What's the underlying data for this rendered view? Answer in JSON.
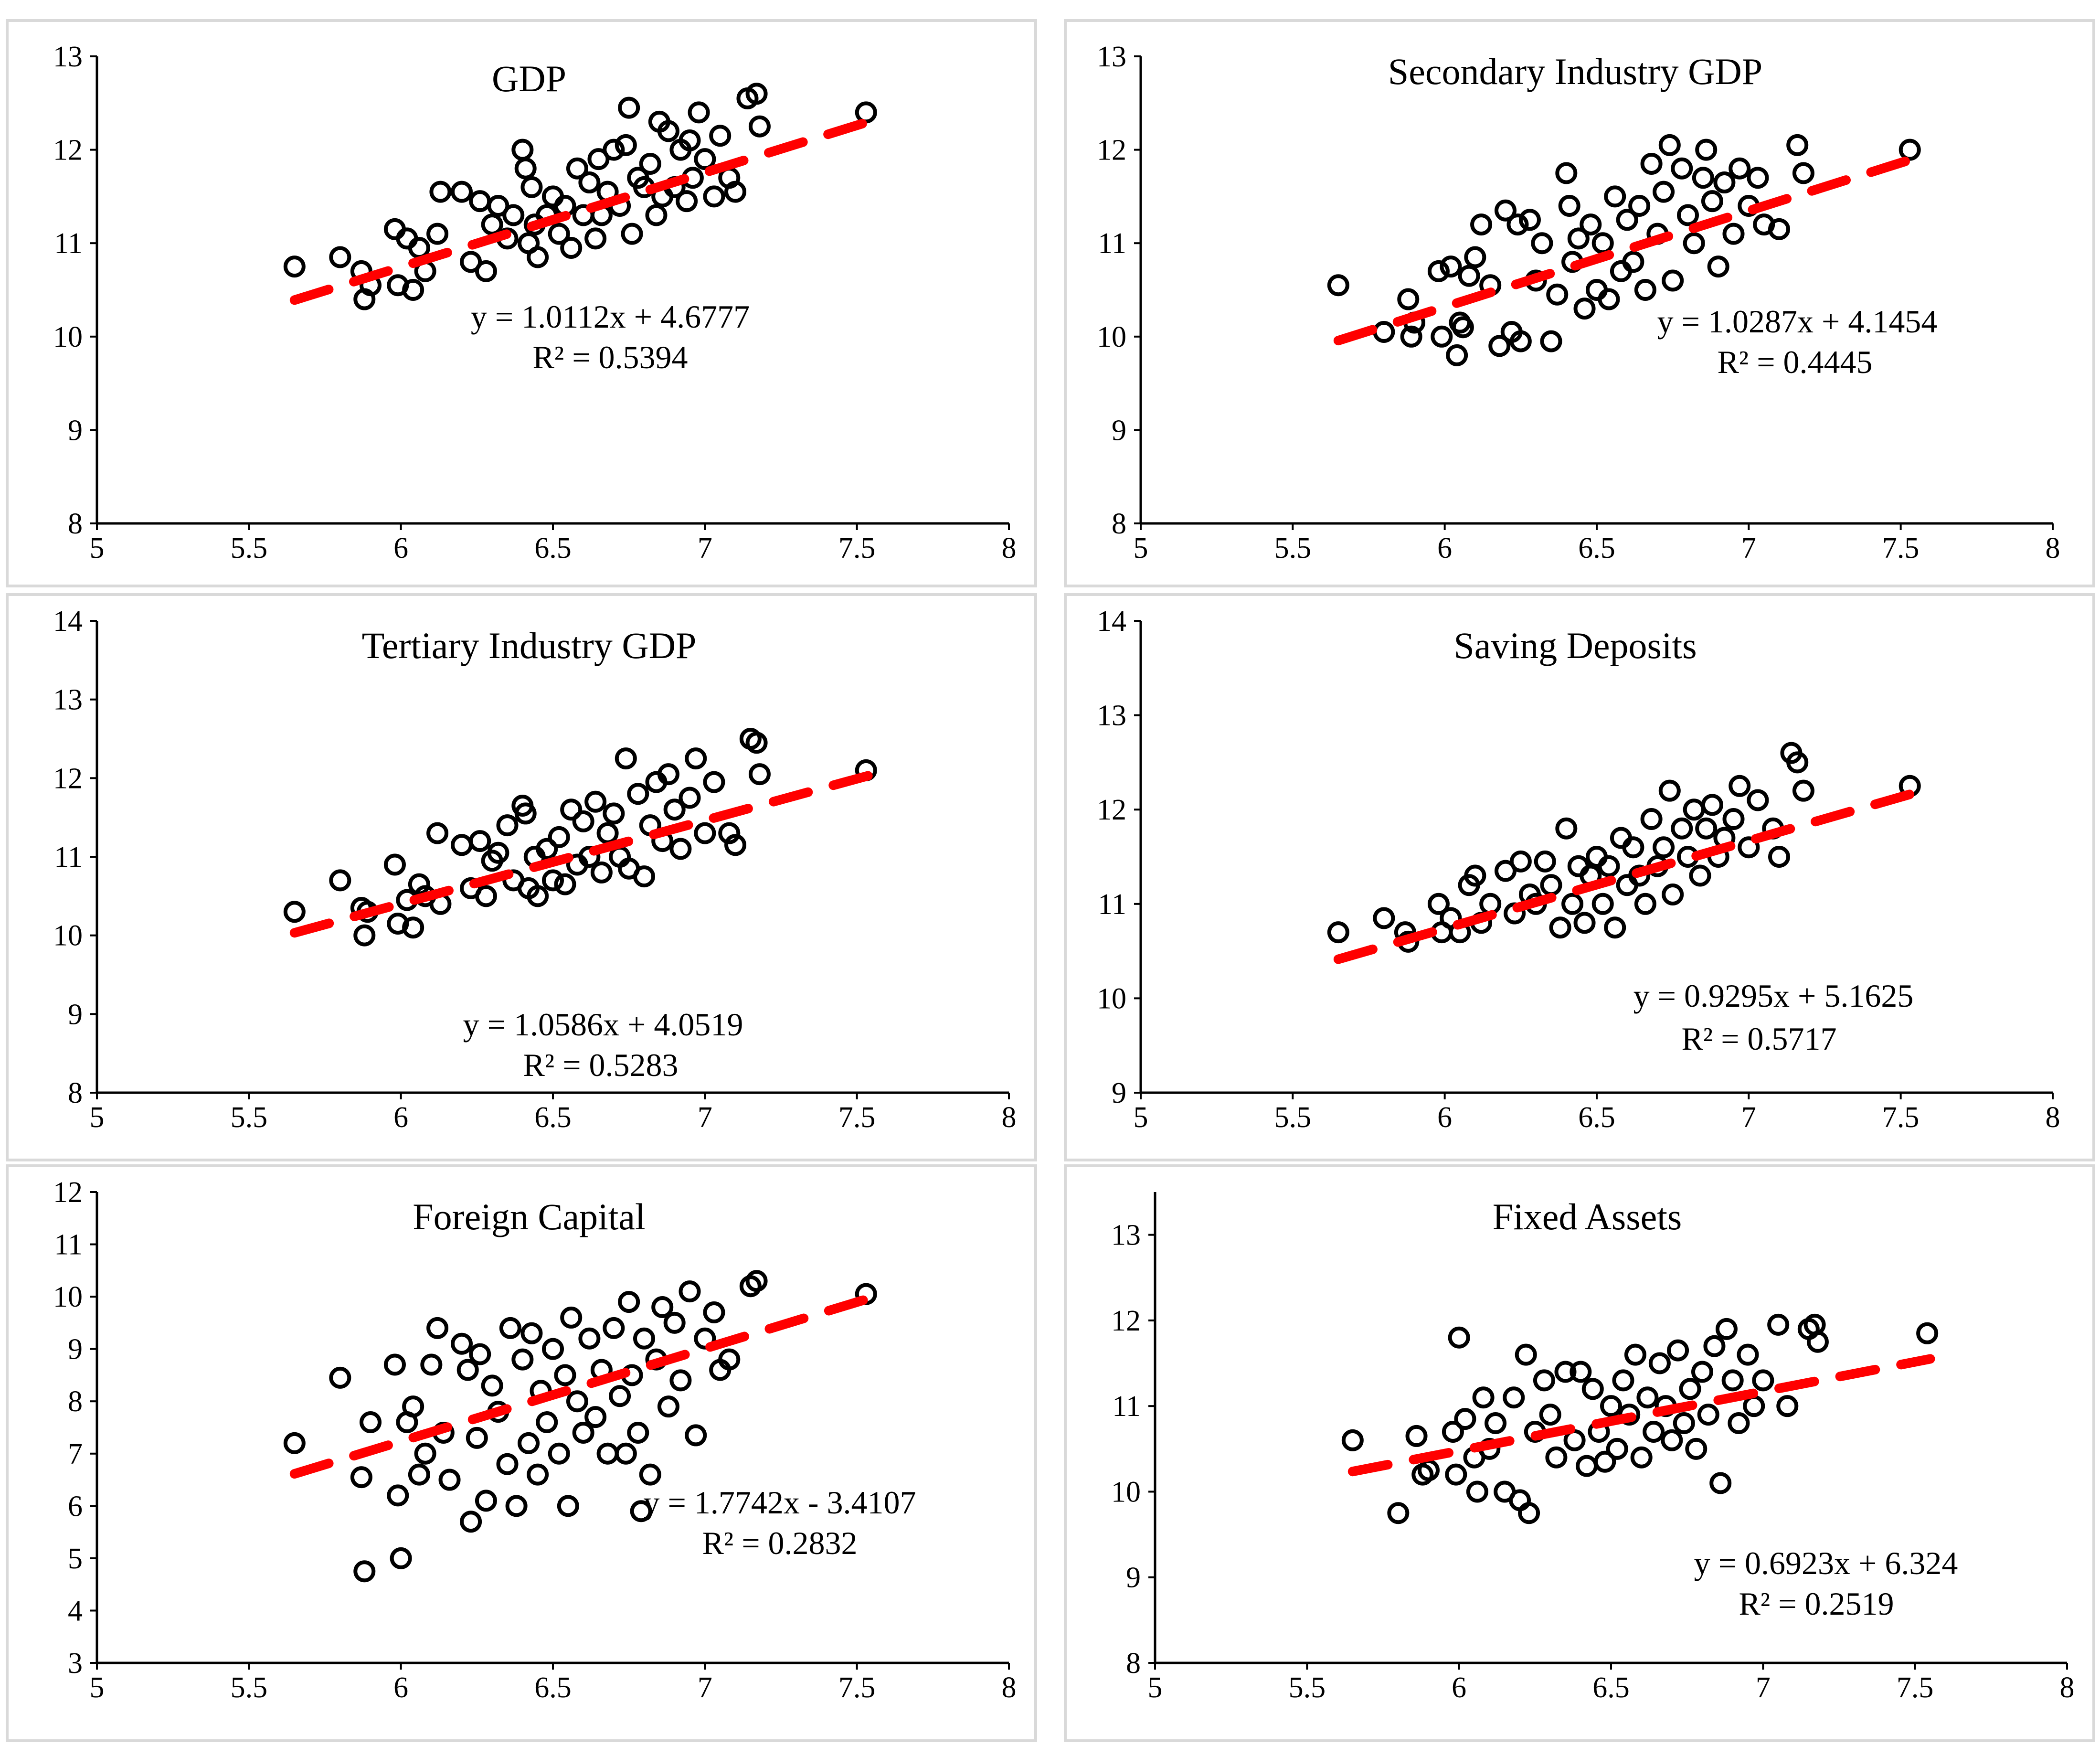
{
  "colors": {
    "point": "#000000",
    "trendline": "#ff0000",
    "axis": "#000000",
    "panel_border": "#d9d9d9"
  },
  "chart_data": [
    {
      "type": "scatter",
      "title": "GDP",
      "xlim": [
        5,
        8
      ],
      "ylim": [
        8,
        13
      ],
      "xticks": [
        "5",
        "5.5",
        "6",
        "6.5",
        "7",
        "7.5",
        "8"
      ],
      "yticks": [
        "8",
        "9",
        "10",
        "11",
        "12",
        "13"
      ],
      "trendline": {
        "slope": 1.0112,
        "intercept": 4.6777,
        "x_range": [
          5.65,
          7.55
        ]
      },
      "equation": "y = 1.0112x + 4.6777",
      "r2": "R² = 0.5394",
      "x": [
        5.65,
        5.8,
        5.87,
        5.88,
        5.9,
        5.98,
        5.99,
        6.02,
        6.04,
        6.06,
        6.08,
        6.12,
        6.13,
        6.2,
        6.23,
        6.26,
        6.28,
        6.3,
        6.32,
        6.35,
        6.37,
        6.4,
        6.41,
        6.42,
        6.43,
        6.44,
        6.45,
        6.48,
        6.5,
        6.52,
        6.54,
        6.56,
        6.58,
        6.6,
        6.62,
        6.64,
        6.65,
        6.66,
        6.68,
        6.7,
        6.72,
        6.74,
        6.75,
        6.76,
        6.78,
        6.8,
        6.82,
        6.84,
        6.85,
        6.86,
        6.88,
        6.9,
        6.92,
        6.94,
        6.95,
        6.96,
        6.98,
        7.0,
        7.03,
        7.05,
        7.08,
        7.1,
        7.14,
        7.17,
        7.18,
        7.53
      ],
      "y": [
        10.75,
        10.85,
        10.7,
        10.4,
        10.55,
        11.15,
        10.55,
        11.05,
        10.5,
        10.95,
        10.7,
        11.1,
        11.55,
        11.55,
        10.8,
        11.45,
        10.7,
        11.2,
        11.4,
        11.05,
        11.3,
        12.0,
        11.8,
        11.0,
        11.6,
        11.2,
        10.85,
        11.3,
        11.5,
        11.1,
        11.4,
        10.95,
        11.8,
        11.3,
        11.65,
        11.05,
        11.9,
        11.3,
        11.55,
        12.0,
        11.4,
        12.05,
        12.45,
        11.1,
        11.7,
        11.6,
        11.85,
        11.3,
        12.3,
        11.5,
        12.2,
        11.6,
        12.0,
        11.45,
        12.1,
        11.7,
        12.4,
        11.9,
        11.5,
        12.15,
        11.7,
        11.55,
        12.55,
        12.6,
        12.25,
        12.4
      ]
    },
    {
      "type": "scatter",
      "title": "Secondary Industry GDP",
      "xlim": [
        5,
        8
      ],
      "ylim": [
        8,
        13
      ],
      "xticks": [
        "5",
        "5.5",
        "6",
        "6.5",
        "7",
        "7.5",
        "8"
      ],
      "yticks": [
        "8",
        "9",
        "10",
        "11",
        "12",
        "13"
      ],
      "trendline": {
        "slope": 1.0287,
        "intercept": 4.1454,
        "x_range": [
          5.65,
          7.55
        ]
      },
      "equation": "y = 1.0287x + 4.1454",
      "r2": "R² = 0.4445",
      "x": [
        5.65,
        5.8,
        5.88,
        5.89,
        5.9,
        5.98,
        5.99,
        6.02,
        6.04,
        6.05,
        6.06,
        6.08,
        6.1,
        6.12,
        6.15,
        6.18,
        6.2,
        6.22,
        6.24,
        6.25,
        6.28,
        6.3,
        6.32,
        6.35,
        6.37,
        6.4,
        6.41,
        6.42,
        6.44,
        6.46,
        6.48,
        6.5,
        6.52,
        6.54,
        6.56,
        6.58,
        6.6,
        6.62,
        6.64,
        6.66,
        6.68,
        6.7,
        6.72,
        6.74,
        6.75,
        6.78,
        6.8,
        6.82,
        6.85,
        6.86,
        6.88,
        6.9,
        6.92,
        6.95,
        6.97,
        7.0,
        7.03,
        7.05,
        7.1,
        7.16,
        7.18,
        7.53
      ],
      "y": [
        10.55,
        10.05,
        10.4,
        10.0,
        10.15,
        10.7,
        10.0,
        10.75,
        9.8,
        10.15,
        10.1,
        10.65,
        10.85,
        11.2,
        10.55,
        9.9,
        11.35,
        10.05,
        11.2,
        9.95,
        11.25,
        10.6,
        11.0,
        9.95,
        10.45,
        11.75,
        11.4,
        10.8,
        11.05,
        10.3,
        11.2,
        10.5,
        11.0,
        10.4,
        11.5,
        10.7,
        11.25,
        10.8,
        11.4,
        10.5,
        11.85,
        11.1,
        11.55,
        12.05,
        10.6,
        11.8,
        11.3,
        11.0,
        11.7,
        12.0,
        11.45,
        10.75,
        11.65,
        11.1,
        11.8,
        11.4,
        11.7,
        11.2,
        11.15,
        12.05,
        11.75,
        12.0
      ]
    },
    {
      "type": "scatter",
      "title": "Tertiary Industry GDP",
      "xlim": [
        5,
        8
      ],
      "ylim": [
        8,
        14
      ],
      "xticks": [
        "5",
        "5.5",
        "6",
        "6.5",
        "7",
        "7.5",
        "8"
      ],
      "yticks": [
        "8",
        "9",
        "10",
        "11",
        "12",
        "13",
        "14"
      ],
      "trendline": {
        "slope": 1.0586,
        "intercept": 4.0519,
        "x_range": [
          5.65,
          7.55
        ]
      },
      "equation": "y = 1.0586x + 4.0519",
      "r2": "R² = 0.5283",
      "x": [
        5.65,
        5.8,
        5.87,
        5.88,
        5.89,
        5.98,
        5.99,
        6.02,
        6.04,
        6.06,
        6.08,
        6.12,
        6.13,
        6.2,
        6.23,
        6.26,
        6.28,
        6.3,
        6.32,
        6.35,
        6.37,
        6.4,
        6.41,
        6.42,
        6.44,
        6.45,
        6.48,
        6.5,
        6.52,
        6.54,
        6.56,
        6.58,
        6.6,
        6.62,
        6.64,
        6.66,
        6.68,
        6.7,
        6.72,
        6.74,
        6.75,
        6.78,
        6.8,
        6.82,
        6.84,
        6.86,
        6.88,
        6.9,
        6.92,
        6.95,
        6.97,
        7.0,
        7.03,
        7.08,
        7.1,
        7.15,
        7.17,
        7.18,
        7.53
      ],
      "y": [
        10.3,
        10.7,
        10.35,
        10.0,
        10.3,
        10.9,
        10.15,
        10.45,
        10.1,
        10.65,
        10.5,
        11.3,
        10.4,
        11.15,
        10.6,
        11.2,
        10.5,
        10.95,
        11.05,
        11.4,
        10.7,
        11.65,
        11.55,
        10.6,
        11.0,
        10.5,
        11.1,
        10.7,
        11.25,
        10.65,
        11.6,
        10.9,
        11.45,
        11.0,
        11.7,
        10.8,
        11.3,
        11.55,
        11.0,
        12.25,
        10.85,
        11.8,
        10.75,
        11.4,
        11.95,
        11.2,
        12.05,
        11.6,
        11.1,
        11.75,
        12.25,
        11.3,
        11.95,
        11.3,
        11.15,
        12.5,
        12.45,
        12.05,
        12.1
      ]
    },
    {
      "type": "scatter",
      "title": "Saving Deposits",
      "xlim": [
        5,
        8
      ],
      "ylim": [
        9,
        14
      ],
      "xticks": [
        "5",
        "5.5",
        "6",
        "6.5",
        "7",
        "7.5",
        "8"
      ],
      "yticks": [
        "9",
        "10",
        "11",
        "12",
        "13",
        "14"
      ],
      "trendline": {
        "slope": 0.9295,
        "intercept": 5.1625,
        "x_range": [
          5.65,
          7.55
        ]
      },
      "equation": "y = 0.9295x + 5.1625",
      "r2": "R² = 0.5717",
      "x": [
        5.65,
        5.8,
        5.87,
        5.88,
        5.98,
        5.99,
        6.02,
        6.05,
        6.08,
        6.1,
        6.12,
        6.15,
        6.2,
        6.23,
        6.25,
        6.28,
        6.3,
        6.33,
        6.35,
        6.38,
        6.4,
        6.42,
        6.44,
        6.46,
        6.48,
        6.5,
        6.52,
        6.54,
        6.56,
        6.58,
        6.6,
        6.62,
        6.64,
        6.66,
        6.68,
        6.7,
        6.72,
        6.74,
        6.75,
        6.78,
        6.8,
        6.82,
        6.84,
        6.86,
        6.88,
        6.9,
        6.92,
        6.95,
        6.97,
        7.0,
        7.03,
        7.08,
        7.1,
        7.14,
        7.16,
        7.18,
        7.53
      ],
      "y": [
        10.7,
        10.85,
        10.7,
        10.6,
        11.0,
        10.7,
        10.85,
        10.7,
        11.2,
        11.3,
        10.8,
        11.0,
        11.35,
        10.9,
        11.45,
        11.1,
        11.0,
        11.45,
        11.2,
        10.75,
        11.8,
        11.0,
        11.4,
        10.8,
        11.3,
        11.5,
        11.0,
        11.4,
        10.75,
        11.7,
        11.2,
        11.6,
        11.3,
        11.0,
        11.9,
        11.4,
        11.6,
        12.2,
        11.1,
        11.8,
        11.5,
        12.0,
        11.3,
        11.8,
        12.05,
        11.5,
        11.7,
        11.9,
        12.25,
        11.6,
        12.1,
        11.8,
        11.5,
        12.6,
        12.5,
        12.2,
        12.25
      ]
    },
    {
      "type": "scatter",
      "title": "Foreign Capital",
      "xlim": [
        5,
        8
      ],
      "ylim": [
        3,
        12
      ],
      "xticks": [
        "5",
        "5.5",
        "6",
        "6.5",
        "7",
        "7.5",
        "8"
      ],
      "yticks": [
        "3",
        "4",
        "5",
        "6",
        "7",
        "8",
        "9",
        "10",
        "11",
        "12"
      ],
      "trendline": {
        "slope": 1.7742,
        "intercept": -3.4107,
        "x_range": [
          5.65,
          7.55
        ]
      },
      "equation": "y = 1.7742x - 3.4107",
      "r2": "R² = 0.2832",
      "x": [
        5.65,
        5.8,
        5.87,
        5.88,
        5.9,
        5.98,
        5.99,
        6.0,
        6.02,
        6.04,
        6.06,
        6.08,
        6.1,
        6.12,
        6.14,
        6.16,
        6.2,
        6.22,
        6.23,
        6.25,
        6.26,
        6.28,
        6.3,
        6.32,
        6.35,
        6.36,
        6.38,
        6.4,
        6.42,
        6.43,
        6.45,
        6.46,
        6.48,
        6.5,
        6.52,
        6.54,
        6.55,
        6.56,
        6.58,
        6.6,
        6.62,
        6.64,
        6.66,
        6.68,
        6.7,
        6.72,
        6.74,
        6.75,
        6.76,
        6.78,
        6.79,
        6.8,
        6.82,
        6.84,
        6.86,
        6.88,
        6.9,
        6.92,
        6.95,
        6.97,
        7.0,
        7.03,
        7.05,
        7.08,
        7.15,
        7.17,
        7.53
      ],
      "y": [
        7.2,
        8.45,
        6.55,
        4.75,
        7.6,
        8.7,
        6.2,
        5.0,
        7.6,
        7.9,
        6.6,
        7.0,
        8.7,
        9.4,
        7.4,
        6.5,
        9.1,
        8.6,
        5.7,
        7.3,
        8.9,
        6.1,
        8.3,
        7.8,
        6.8,
        9.4,
        6.0,
        8.8,
        7.2,
        9.3,
        6.6,
        8.2,
        7.6,
        9.0,
        7.0,
        8.5,
        6.0,
        9.6,
        8.0,
        7.4,
        9.2,
        7.7,
        8.6,
        7.0,
        9.4,
        8.1,
        7.0,
        9.9,
        8.5,
        7.4,
        5.9,
        9.2,
        6.6,
        8.8,
        9.8,
        7.9,
        9.5,
        8.4,
        10.1,
        7.35,
        9.2,
        9.7,
        8.6,
        8.8,
        10.2,
        10.3,
        10.05
      ]
    },
    {
      "type": "scatter",
      "title": "Fixed Assets",
      "xlim": [
        5,
        8
      ],
      "ylim": [
        8,
        13.5
      ],
      "xticks": [
        "5",
        "5.5",
        "6",
        "6.5",
        "7",
        "7.5",
        "8"
      ],
      "yticks": [
        "8",
        "9",
        "10",
        "11",
        "12",
        "13"
      ],
      "trendline": {
        "slope": 0.6923,
        "intercept": 6.324,
        "x_range": [
          5.65,
          7.55
        ]
      },
      "equation": "y = 0.6923x + 6.324",
      "r2": "R² = 0.2519",
      "x": [
        5.65,
        5.8,
        5.86,
        5.88,
        5.9,
        5.98,
        5.99,
        6.0,
        6.02,
        6.05,
        6.06,
        6.08,
        6.1,
        6.12,
        6.15,
        6.18,
        6.2,
        6.22,
        6.23,
        6.25,
        6.28,
        6.3,
        6.32,
        6.35,
        6.38,
        6.4,
        6.42,
        6.44,
        6.46,
        6.48,
        6.5,
        6.52,
        6.54,
        6.56,
        6.58,
        6.6,
        6.62,
        6.64,
        6.66,
        6.68,
        6.7,
        6.72,
        6.74,
        6.76,
        6.78,
        6.8,
        6.82,
        6.84,
        6.86,
        6.88,
        6.9,
        6.92,
        6.95,
        6.97,
        7.0,
        7.05,
        7.08,
        7.15,
        7.17,
        7.18,
        7.54
      ],
      "y": [
        10.6,
        9.75,
        10.65,
        10.2,
        10.25,
        10.7,
        10.2,
        11.8,
        10.85,
        10.4,
        10.0,
        11.1,
        10.5,
        10.8,
        10.0,
        11.1,
        9.9,
        11.6,
        9.75,
        10.7,
        11.3,
        10.9,
        10.4,
        11.4,
        10.6,
        11.4,
        10.3,
        11.2,
        10.7,
        10.35,
        11.0,
        10.5,
        11.3,
        10.9,
        11.6,
        10.4,
        11.1,
        10.7,
        11.5,
        11.0,
        10.6,
        11.65,
        10.8,
        11.2,
        10.5,
        11.4,
        10.9,
        11.7,
        10.1,
        11.9,
        11.3,
        10.8,
        11.6,
        11.0,
        11.3,
        11.95,
        11.0,
        11.9,
        11.95,
        11.75,
        11.85
      ]
    }
  ]
}
